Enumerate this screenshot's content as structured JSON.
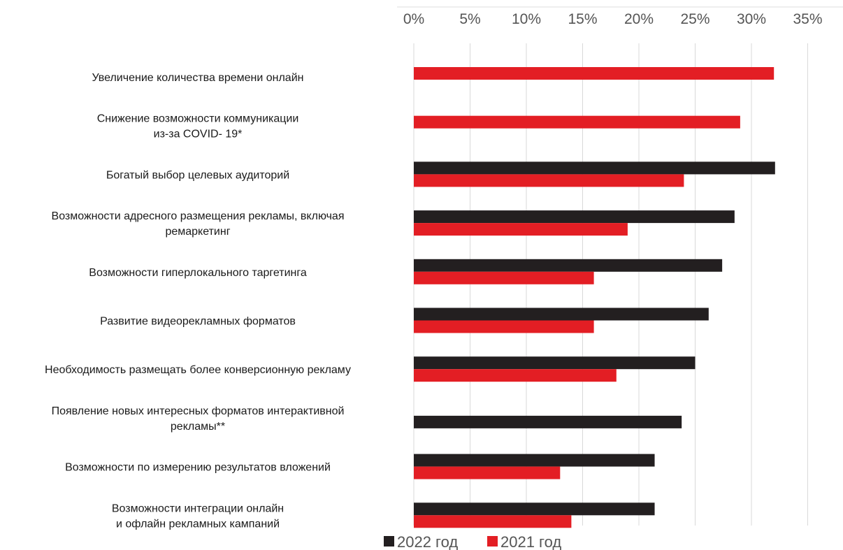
{
  "chart_data": {
    "type": "bar",
    "orientation": "horizontal",
    "categories": [
      [
        "Увеличение количества времени онлайн"
      ],
      [
        "Снижение возможности коммуникации",
        "из-за COVID- 19*"
      ],
      [
        "Богатый выбор целевых аудиторий"
      ],
      [
        "Возможности адресного размещения рекламы, включая",
        "ремаркетинг"
      ],
      [
        "Возможности гиперлокального таргетинга"
      ],
      [
        "Развитие видеорекламных форматов"
      ],
      [
        "Необходимость размещать более конверсионную рекламу"
      ],
      [
        "Появление новых интересных форматов интерактивной",
        "рекламы**"
      ],
      [
        "Возможности по измерению результатов вложений"
      ],
      [
        "Возможности интеграции онлайн",
        "и офлайн рекламных кампаний"
      ]
    ],
    "series": [
      {
        "name": "2022 год",
        "color": "#231f20",
        "values": [
          null,
          null,
          32.1,
          28.5,
          27.4,
          26.2,
          25.0,
          23.8,
          21.4,
          21.4
        ]
      },
      {
        "name": "2021 год",
        "color": "#e31e24",
        "values": [
          32.0,
          29.0,
          24.0,
          19.0,
          16.0,
          16.0,
          18.0,
          null,
          13.0,
          14.0
        ]
      }
    ],
    "xlim": [
      0,
      35
    ],
    "x_ticks": [
      "0%",
      "5%",
      "10%",
      "15%",
      "20%",
      "25%",
      "30%",
      "35%"
    ],
    "x_tick_values": [
      0,
      5,
      10,
      15,
      20,
      25,
      30,
      35
    ],
    "x_axis_position": "top",
    "grid": true,
    "legend": "bottom"
  }
}
